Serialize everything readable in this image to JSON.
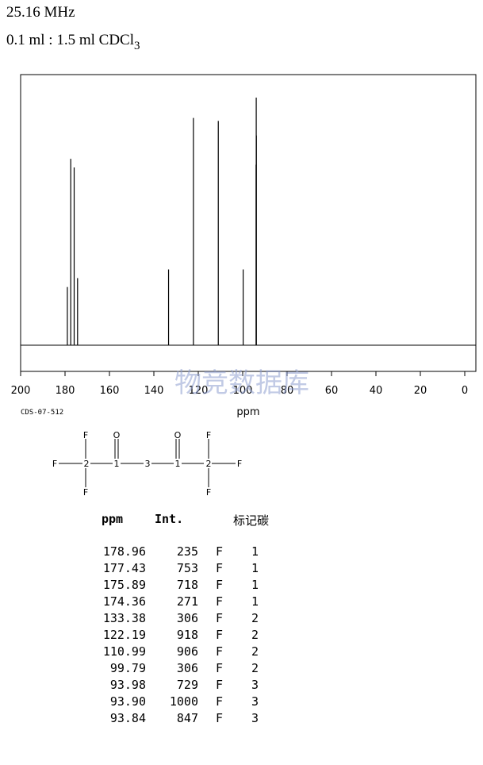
{
  "header": {
    "frequency": "25.16 MHz",
    "solvent_main": "0.1 ml : 1.5 ml CDCl",
    "solvent_sub": "3"
  },
  "chart_data": {
    "type": "line",
    "xlabel": "ppm",
    "xlim": [
      200,
      0
    ],
    "reversed_x": true,
    "x_ticks": [
      200,
      180,
      160,
      140,
      120,
      100,
      80,
      60,
      40,
      20,
      0
    ],
    "peaks": [
      {
        "ppm": 178.96,
        "int": 235
      },
      {
        "ppm": 177.43,
        "int": 753
      },
      {
        "ppm": 175.89,
        "int": 718
      },
      {
        "ppm": 174.36,
        "int": 271
      },
      {
        "ppm": 133.38,
        "int": 306
      },
      {
        "ppm": 122.19,
        "int": 918
      },
      {
        "ppm": 110.99,
        "int": 906
      },
      {
        "ppm": 99.79,
        "int": 306
      },
      {
        "ppm": 93.98,
        "int": 729
      },
      {
        "ppm": 93.9,
        "int": 1000
      },
      {
        "ppm": 93.84,
        "int": 847
      }
    ]
  },
  "code": "CDS-07-512",
  "watermark": "物竞数据库",
  "molecule": {
    "atoms": [
      "F",
      "F",
      "2",
      "F",
      "O",
      "1",
      "3",
      "O",
      "1",
      "F",
      "2",
      "F",
      "F"
    ]
  },
  "table": {
    "headers": [
      "ppm",
      "Int.",
      "标记碳"
    ],
    "rows": [
      {
        "ppm": "178.96",
        "int": "235",
        "atom": "F",
        "carbon": "1"
      },
      {
        "ppm": "177.43",
        "int": "753",
        "atom": "F",
        "carbon": "1"
      },
      {
        "ppm": "175.89",
        "int": "718",
        "atom": "F",
        "carbon": "1"
      },
      {
        "ppm": "174.36",
        "int": "271",
        "atom": "F",
        "carbon": "1"
      },
      {
        "ppm": "133.38",
        "int": "306",
        "atom": "F",
        "carbon": "2"
      },
      {
        "ppm": "122.19",
        "int": "918",
        "atom": "F",
        "carbon": "2"
      },
      {
        "ppm": "110.99",
        "int": "906",
        "atom": "F",
        "carbon": "2"
      },
      {
        "ppm": "99.79",
        "int": "306",
        "atom": "F",
        "carbon": "2"
      },
      {
        "ppm": "93.98",
        "int": "729",
        "atom": "F",
        "carbon": "3"
      },
      {
        "ppm": "93.90",
        "int": "1000",
        "atom": "F",
        "carbon": "3"
      },
      {
        "ppm": "93.84",
        "int": "847",
        "atom": "F",
        "carbon": "3"
      }
    ]
  }
}
